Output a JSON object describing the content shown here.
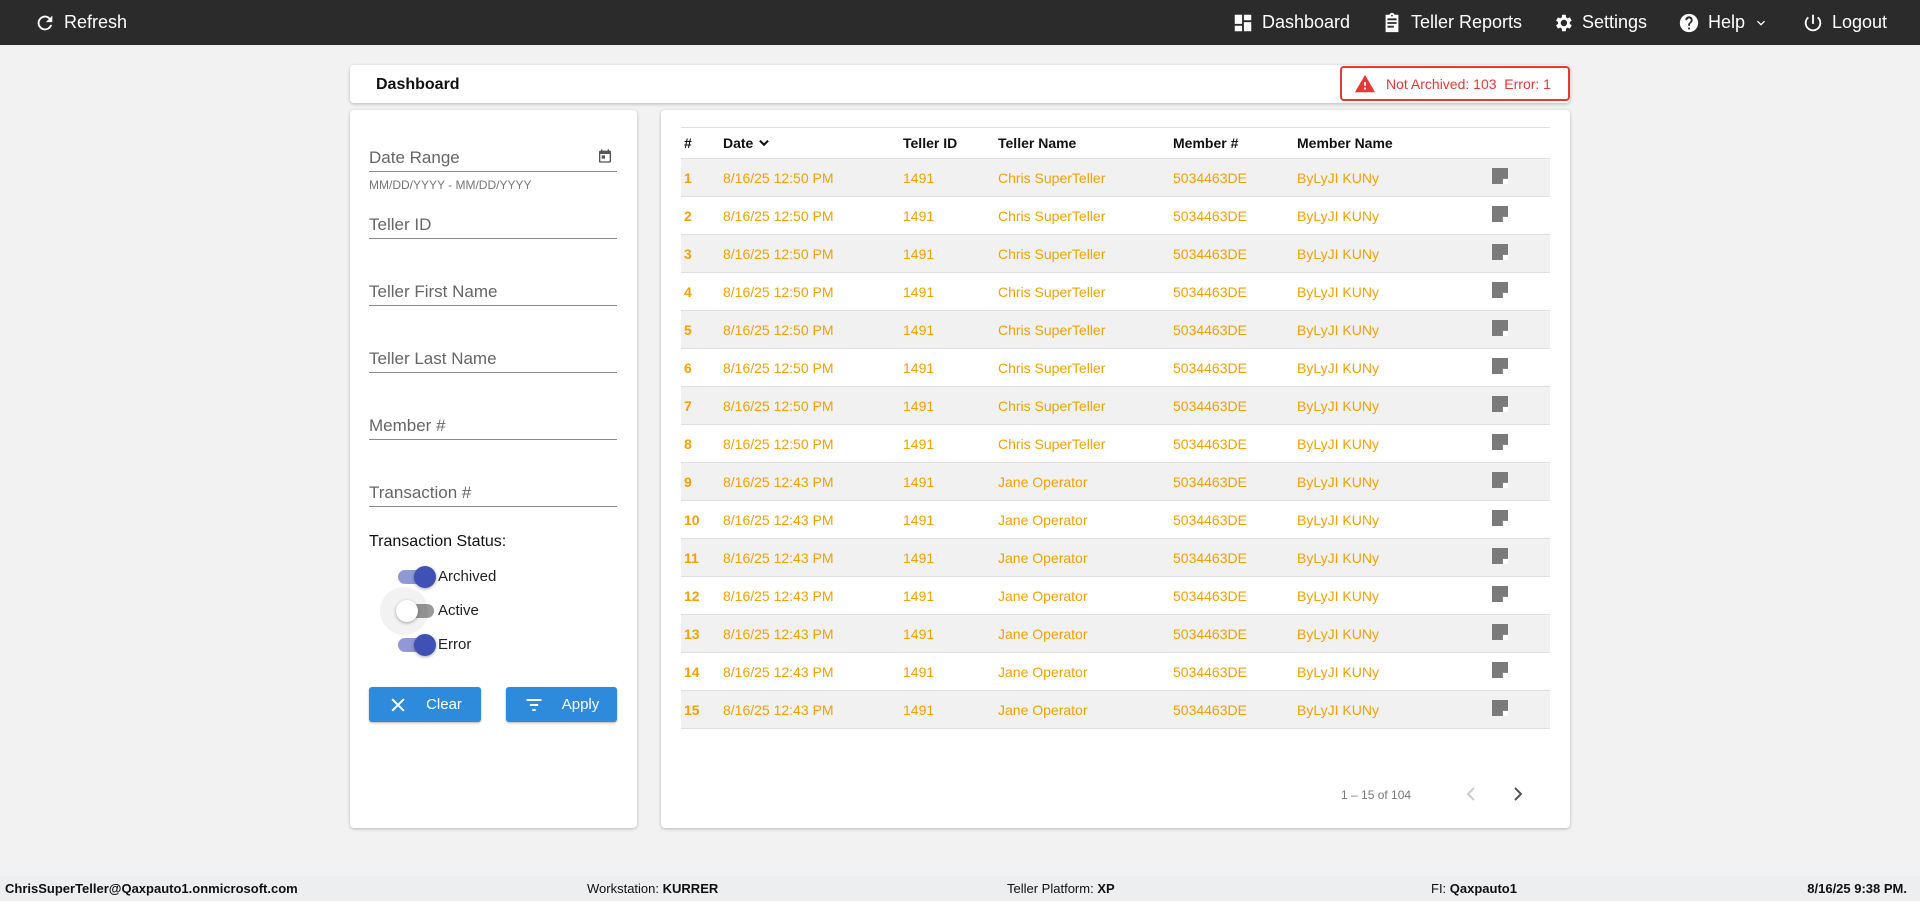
{
  "topbar": {
    "refresh": "Refresh",
    "nav": [
      {
        "label": "Dashboard",
        "icon": "dashboard-icon"
      },
      {
        "label": "Teller Reports",
        "icon": "clipboard-icon"
      },
      {
        "label": "Settings",
        "icon": "gear-icon"
      },
      {
        "label": "Help",
        "icon": "help-icon"
      },
      {
        "label": "Logout",
        "icon": "power-icon"
      }
    ]
  },
  "header": {
    "title": "Dashboard",
    "alert": "Not Archived: 103  Error: 1",
    "alert_color": "#e53935"
  },
  "filters": {
    "date_range": "Date Range",
    "date_hint": "MM/DD/YYYY - MM/DD/YYYY",
    "teller_id": "Teller ID",
    "first_name": "Teller First Name",
    "last_name": "Teller Last Name",
    "member": "Member #",
    "transaction": "Transaction #",
    "status_label": "Transaction Status:",
    "statuses": [
      {
        "label": "Archived",
        "on": true
      },
      {
        "label": "Active",
        "on": false
      },
      {
        "label": "Error",
        "on": true
      }
    ],
    "clear": "Clear",
    "apply": "Apply"
  },
  "table": {
    "columns": [
      "#",
      "Date",
      "Teller ID",
      "Teller Name",
      "Member #",
      "Member Name"
    ],
    "rows": [
      [
        "1",
        "8/16/25 12:50 PM",
        "1491",
        "Chris SuperTeller",
        "5034463DE",
        "ByLyJI KUNy"
      ],
      [
        "2",
        "8/16/25 12:50 PM",
        "1491",
        "Chris SuperTeller",
        "5034463DE",
        "ByLyJI KUNy"
      ],
      [
        "3",
        "8/16/25 12:50 PM",
        "1491",
        "Chris SuperTeller",
        "5034463DE",
        "ByLyJI KUNy"
      ],
      [
        "4",
        "8/16/25 12:50 PM",
        "1491",
        "Chris SuperTeller",
        "5034463DE",
        "ByLyJI KUNy"
      ],
      [
        "5",
        "8/16/25 12:50 PM",
        "1491",
        "Chris SuperTeller",
        "5034463DE",
        "ByLyJI KUNy"
      ],
      [
        "6",
        "8/16/25 12:50 PM",
        "1491",
        "Chris SuperTeller",
        "5034463DE",
        "ByLyJI KUNy"
      ],
      [
        "7",
        "8/16/25 12:50 PM",
        "1491",
        "Chris SuperTeller",
        "5034463DE",
        "ByLyJI KUNy"
      ],
      [
        "8",
        "8/16/25 12:50 PM",
        "1491",
        "Chris SuperTeller",
        "5034463DE",
        "ByLyJI KUNy"
      ],
      [
        "9",
        "8/16/25 12:43 PM",
        "1491",
        "Jane Operator",
        "5034463DE",
        "ByLyJI KUNy"
      ],
      [
        "10",
        "8/16/25 12:43 PM",
        "1491",
        "Jane Operator",
        "5034463DE",
        "ByLyJI KUNy"
      ],
      [
        "11",
        "8/16/25 12:43 PM",
        "1491",
        "Jane Operator",
        "5034463DE",
        "ByLyJI KUNy"
      ],
      [
        "12",
        "8/16/25 12:43 PM",
        "1491",
        "Jane Operator",
        "5034463DE",
        "ByLyJI KUNy"
      ],
      [
        "13",
        "8/16/25 12:43 PM",
        "1491",
        "Jane Operator",
        "5034463DE",
        "ByLyJI KUNy"
      ],
      [
        "14",
        "8/16/25 12:43 PM",
        "1491",
        "Jane Operator",
        "5034463DE",
        "ByLyJI KUNy"
      ],
      [
        "15",
        "8/16/25 12:43 PM",
        "1491",
        "Jane Operator",
        "5034463DE",
        "ByLyJI KUNy"
      ]
    ],
    "row_color": "#f5a000",
    "pagination": "1 – 15 of 104"
  },
  "footer": {
    "user": "ChrisSuperTeller@Qaxpauto1.onmicrosoft.com",
    "ws_label": "Workstation:",
    "ws": "KURRER",
    "tp_label": "Teller Platform:",
    "tp": "XP",
    "fi_label": "FI:",
    "fi": "Qaxpauto1",
    "datetime": "8/16/25 9:38 PM."
  }
}
